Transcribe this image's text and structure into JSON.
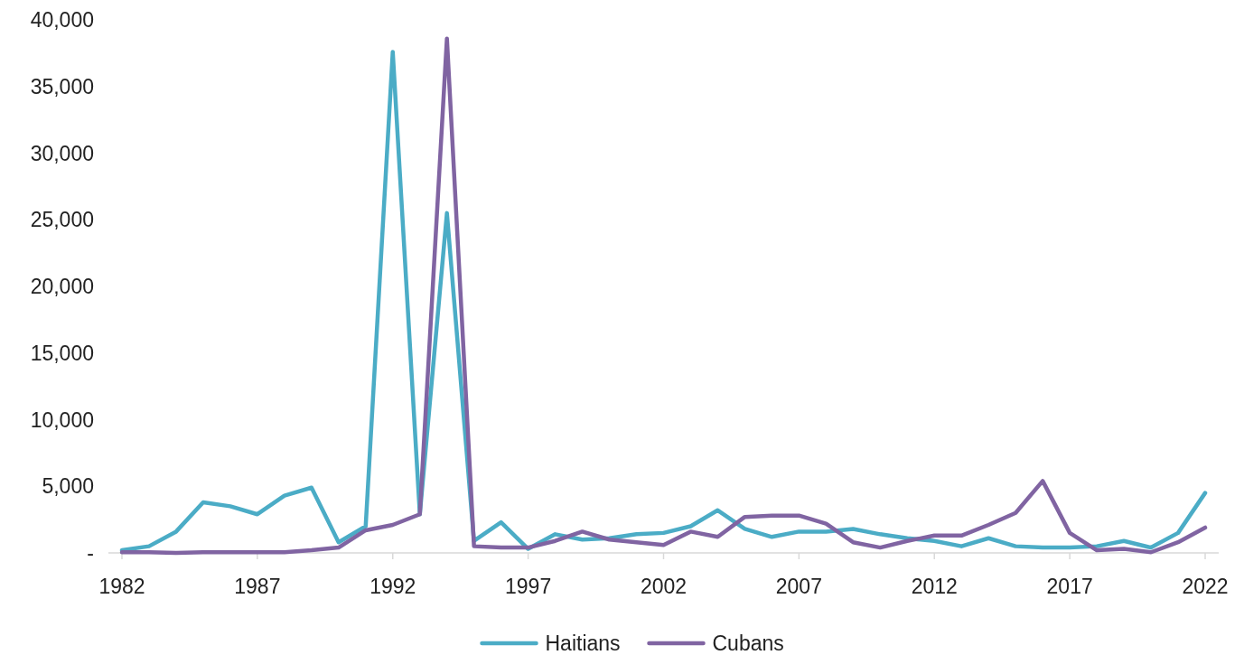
{
  "chart_data": {
    "type": "line",
    "x": [
      1982,
      1983,
      1984,
      1985,
      1986,
      1987,
      1988,
      1989,
      1990,
      1991,
      1992,
      1993,
      1994,
      1995,
      1996,
      1997,
      1998,
      1999,
      2000,
      2001,
      2002,
      2003,
      2004,
      2005,
      2006,
      2007,
      2008,
      2009,
      2010,
      2011,
      2012,
      2013,
      2014,
      2015,
      2016,
      2017,
      2018,
      2019,
      2020,
      2021,
      2022
    ],
    "series": [
      {
        "name": "Haitians",
        "color": "#4bacc6",
        "values": [
          200,
          500,
          1600,
          3800,
          3500,
          2900,
          4300,
          4900,
          800,
          2000,
          37600,
          2900,
          25500,
          900,
          2300,
          300,
          1400,
          1000,
          1100,
          1400,
          1500,
          2000,
          3200,
          1800,
          1200,
          1600,
          1600,
          1800,
          1400,
          1100,
          900,
          500,
          1100,
          500,
          400,
          400,
          500,
          900,
          400,
          1500,
          4500
        ]
      },
      {
        "name": "Cubans",
        "color": "#8064a2",
        "values": [
          50,
          50,
          0,
          50,
          50,
          50,
          50,
          200,
          400,
          1700,
          2100,
          2900,
          38600,
          500,
          400,
          400,
          900,
          1600,
          1000,
          800,
          600,
          1600,
          1200,
          2700,
          2800,
          2800,
          2200,
          800,
          400,
          900,
          1300,
          1300,
          2100,
          3000,
          5400,
          1500,
          200,
          300,
          50,
          800,
          1900
        ]
      }
    ],
    "xlim": [
      1981.5,
      2022.5
    ],
    "xticks": [
      1982,
      1987,
      1992,
      1997,
      2002,
      2007,
      2012,
      2017,
      2022
    ],
    "ylim": [
      0,
      40000
    ],
    "yticks": [
      {
        "value": 0,
        "label": "-"
      },
      {
        "value": 5000,
        "label": "5,000"
      },
      {
        "value": 10000,
        "label": "10,000"
      },
      {
        "value": 15000,
        "label": "15,000"
      },
      {
        "value": 20000,
        "label": "20,000"
      },
      {
        "value": 25000,
        "label": "25,000"
      },
      {
        "value": 30000,
        "label": "30,000"
      },
      {
        "value": 35000,
        "label": "35,000"
      },
      {
        "value": 40000,
        "label": "40,000"
      }
    ],
    "grid": false,
    "legend": "bottom",
    "line_style": "solid",
    "marker": "none"
  }
}
